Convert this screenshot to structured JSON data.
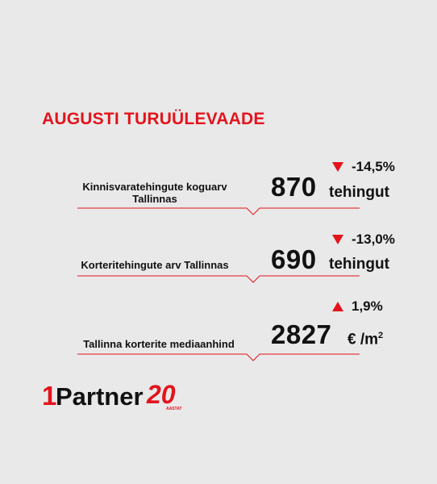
{
  "header": {
    "title": "AUGUSTI TURUÜLEVAADE"
  },
  "metrics": [
    {
      "direction": "down",
      "change": "-14,5%",
      "label_line1": "Kinnisvaratehingute koguarv",
      "label_line2": "Tallinnas",
      "value": "870",
      "unit": "tehingut"
    },
    {
      "direction": "down",
      "change": "-13,0%",
      "label_line1": "Korteritehingute arv Tallinnas",
      "label_line2": "",
      "value": "690",
      "unit": "tehingut"
    },
    {
      "direction": "up",
      "change": "1,9%",
      "label_line1": "Tallinna korterite mediaanhind",
      "label_line2": "",
      "value": "2827",
      "unit": "€ /m",
      "unit_sup": "2"
    }
  ],
  "logo": {
    "mark": "1",
    "word": "Partner",
    "anniversary": "20",
    "caption": "AASTAT"
  },
  "colors": {
    "accent": "#e3141c",
    "text": "#111111",
    "background": "#e9e9e9"
  }
}
